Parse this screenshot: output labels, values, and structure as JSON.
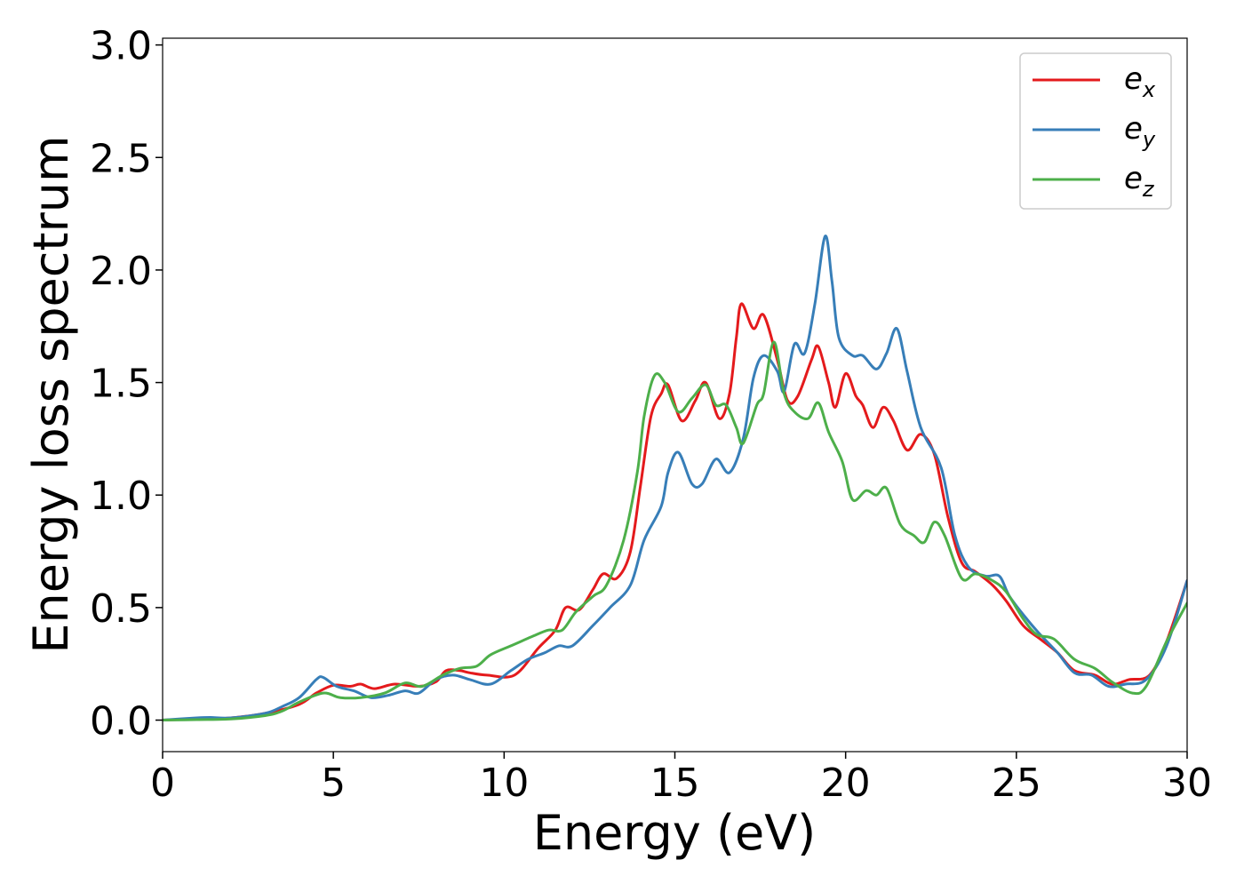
{
  "chart_data": {
    "type": "line",
    "title": "",
    "xlabel": "Energy (eV)",
    "ylabel": "Energy loss spectrum",
    "xlim": [
      0,
      30
    ],
    "ylim": [
      -0.14,
      3.03
    ],
    "xticks": [
      "0",
      "5",
      "10",
      "15",
      "20",
      "25",
      "30"
    ],
    "yticks": [
      "0.0",
      "0.5",
      "1.0",
      "1.5",
      "2.0",
      "2.5",
      "3.0"
    ],
    "grid": false,
    "legend_position": "top-right",
    "series": [
      {
        "name": "e_x",
        "label_base": "e",
        "label_sub": "x",
        "color": "#e41a1c",
        "points": [
          [
            0,
            0
          ],
          [
            1,
            0.005
          ],
          [
            2,
            0.01
          ],
          [
            3,
            0.03
          ],
          [
            4,
            0.07
          ],
          [
            4.5,
            0.12
          ],
          [
            5,
            0.155
          ],
          [
            5.5,
            0.15
          ],
          [
            5.8,
            0.16
          ],
          [
            6.2,
            0.14
          ],
          [
            6.8,
            0.16
          ],
          [
            7.5,
            0.15
          ],
          [
            8,
            0.17
          ],
          [
            8.3,
            0.22
          ],
          [
            8.7,
            0.22
          ],
          [
            9,
            0.21
          ],
          [
            9.5,
            0.2
          ],
          [
            10.3,
            0.2
          ],
          [
            11,
            0.32
          ],
          [
            11.5,
            0.4
          ],
          [
            11.8,
            0.5
          ],
          [
            12.2,
            0.49
          ],
          [
            12.6,
            0.58
          ],
          [
            12.9,
            0.65
          ],
          [
            13.3,
            0.63
          ],
          [
            13.7,
            0.75
          ],
          [
            14,
            1.05
          ],
          [
            14.3,
            1.35
          ],
          [
            14.6,
            1.45
          ],
          [
            14.8,
            1.49
          ],
          [
            15.2,
            1.33
          ],
          [
            15.6,
            1.42
          ],
          [
            15.9,
            1.5
          ],
          [
            16.3,
            1.34
          ],
          [
            16.6,
            1.45
          ],
          [
            16.8,
            1.7
          ],
          [
            16.95,
            1.85
          ],
          [
            17.3,
            1.74
          ],
          [
            17.6,
            1.8
          ],
          [
            18,
            1.6
          ],
          [
            18.3,
            1.42
          ],
          [
            18.6,
            1.44
          ],
          [
            19,
            1.6
          ],
          [
            19.2,
            1.66
          ],
          [
            19.5,
            1.5
          ],
          [
            19.7,
            1.39
          ],
          [
            20,
            1.54
          ],
          [
            20.3,
            1.44
          ],
          [
            20.5,
            1.4
          ],
          [
            20.8,
            1.3
          ],
          [
            21.1,
            1.39
          ],
          [
            21.4,
            1.33
          ],
          [
            21.8,
            1.2
          ],
          [
            22.2,
            1.27
          ],
          [
            22.6,
            1.18
          ],
          [
            23,
            0.9
          ],
          [
            23.4,
            0.7
          ],
          [
            23.8,
            0.66
          ],
          [
            24.3,
            0.6
          ],
          [
            24.7,
            0.53
          ],
          [
            25.2,
            0.42
          ],
          [
            25.7,
            0.36
          ],
          [
            26.2,
            0.3
          ],
          [
            26.7,
            0.22
          ],
          [
            27.3,
            0.2
          ],
          [
            27.8,
            0.16
          ],
          [
            28.3,
            0.18
          ],
          [
            28.9,
            0.2
          ],
          [
            29.4,
            0.35
          ],
          [
            30,
            0.62
          ]
        ]
      },
      {
        "name": "e_y",
        "label_base": "e",
        "label_sub": "y",
        "color": "#377eb8",
        "points": [
          [
            0,
            0
          ],
          [
            1,
            0.01
          ],
          [
            1.4,
            0.012
          ],
          [
            2,
            0.01
          ],
          [
            3,
            0.03
          ],
          [
            3.5,
            0.06
          ],
          [
            4,
            0.1
          ],
          [
            4.5,
            0.18
          ],
          [
            4.7,
            0.19
          ],
          [
            5.1,
            0.15
          ],
          [
            5.6,
            0.13
          ],
          [
            6.1,
            0.1
          ],
          [
            6.6,
            0.11
          ],
          [
            7.1,
            0.13
          ],
          [
            7.5,
            0.12
          ],
          [
            8,
            0.18
          ],
          [
            8.5,
            0.2
          ],
          [
            9,
            0.18
          ],
          [
            9.6,
            0.16
          ],
          [
            10.2,
            0.22
          ],
          [
            10.7,
            0.27
          ],
          [
            11.2,
            0.3
          ],
          [
            11.6,
            0.33
          ],
          [
            12,
            0.33
          ],
          [
            12.6,
            0.42
          ],
          [
            13.1,
            0.5
          ],
          [
            13.7,
            0.6
          ],
          [
            14.1,
            0.8
          ],
          [
            14.6,
            0.95
          ],
          [
            14.8,
            1.1
          ],
          [
            15.1,
            1.19
          ],
          [
            15.5,
            1.05
          ],
          [
            15.8,
            1.05
          ],
          [
            16.2,
            1.16
          ],
          [
            16.6,
            1.1
          ],
          [
            17,
            1.25
          ],
          [
            17.3,
            1.52
          ],
          [
            17.6,
            1.62
          ],
          [
            18,
            1.55
          ],
          [
            18.2,
            1.46
          ],
          [
            18.5,
            1.67
          ],
          [
            18.8,
            1.63
          ],
          [
            19.1,
            1.85
          ],
          [
            19.4,
            2.15
          ],
          [
            19.6,
            1.95
          ],
          [
            19.8,
            1.7
          ],
          [
            20.2,
            1.62
          ],
          [
            20.5,
            1.62
          ],
          [
            20.9,
            1.56
          ],
          [
            21.2,
            1.63
          ],
          [
            21.5,
            1.74
          ],
          [
            21.8,
            1.55
          ],
          [
            22.2,
            1.3
          ],
          [
            22.8,
            1.12
          ],
          [
            23.2,
            0.82
          ],
          [
            23.6,
            0.68
          ],
          [
            24.1,
            0.64
          ],
          [
            24.5,
            0.64
          ],
          [
            24.8,
            0.55
          ],
          [
            25.3,
            0.45
          ],
          [
            25.7,
            0.38
          ],
          [
            26.2,
            0.3
          ],
          [
            26.7,
            0.21
          ],
          [
            27.2,
            0.2
          ],
          [
            27.7,
            0.15
          ],
          [
            28.2,
            0.16
          ],
          [
            28.8,
            0.18
          ],
          [
            29.4,
            0.33
          ],
          [
            30,
            0.62
          ]
        ]
      },
      {
        "name": "e_z",
        "label_base": "e",
        "label_sub": "z",
        "color": "#4daf4a",
        "points": [
          [
            0,
            0
          ],
          [
            1,
            0.002
          ],
          [
            2,
            0.005
          ],
          [
            3,
            0.02
          ],
          [
            3.5,
            0.04
          ],
          [
            4,
            0.08
          ],
          [
            4.7,
            0.12
          ],
          [
            5.2,
            0.1
          ],
          [
            5.8,
            0.1
          ],
          [
            6.5,
            0.12
          ],
          [
            7.1,
            0.165
          ],
          [
            7.6,
            0.15
          ],
          [
            8.2,
            0.2
          ],
          [
            8.7,
            0.23
          ],
          [
            9.2,
            0.24
          ],
          [
            9.6,
            0.29
          ],
          [
            10.2,
            0.33
          ],
          [
            10.8,
            0.37
          ],
          [
            11.3,
            0.4
          ],
          [
            11.7,
            0.4
          ],
          [
            12.1,
            0.48
          ],
          [
            12.6,
            0.55
          ],
          [
            13,
            0.6
          ],
          [
            13.5,
            0.8
          ],
          [
            13.9,
            1.1
          ],
          [
            14.1,
            1.35
          ],
          [
            14.4,
            1.53
          ],
          [
            14.7,
            1.5
          ],
          [
            15.1,
            1.37
          ],
          [
            15.5,
            1.43
          ],
          [
            15.9,
            1.49
          ],
          [
            16.2,
            1.4
          ],
          [
            16.5,
            1.4
          ],
          [
            16.8,
            1.3
          ],
          [
            17,
            1.23
          ],
          [
            17.4,
            1.4
          ],
          [
            17.6,
            1.45
          ],
          [
            17.9,
            1.68
          ],
          [
            18.2,
            1.45
          ],
          [
            18.5,
            1.37
          ],
          [
            18.9,
            1.34
          ],
          [
            19.2,
            1.41
          ],
          [
            19.5,
            1.28
          ],
          [
            19.9,
            1.15
          ],
          [
            20.2,
            0.98
          ],
          [
            20.6,
            1.02
          ],
          [
            20.9,
            1.0
          ],
          [
            21.2,
            1.03
          ],
          [
            21.6,
            0.87
          ],
          [
            22,
            0.82
          ],
          [
            22.3,
            0.79
          ],
          [
            22.6,
            0.88
          ],
          [
            22.9,
            0.82
          ],
          [
            23.4,
            0.63
          ],
          [
            23.8,
            0.65
          ],
          [
            24.3,
            0.62
          ],
          [
            24.7,
            0.57
          ],
          [
            25.2,
            0.45
          ],
          [
            25.6,
            0.38
          ],
          [
            26.1,
            0.36
          ],
          [
            26.7,
            0.27
          ],
          [
            27.3,
            0.23
          ],
          [
            27.8,
            0.17
          ],
          [
            28.4,
            0.12
          ],
          [
            28.8,
            0.15
          ],
          [
            29.4,
            0.35
          ],
          [
            30,
            0.52
          ]
        ]
      }
    ]
  }
}
